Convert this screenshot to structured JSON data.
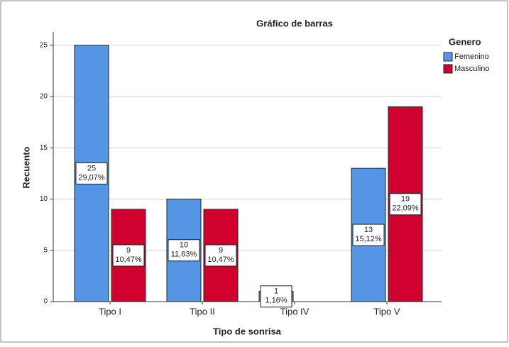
{
  "chart_data": {
    "type": "bar",
    "title": "Gráfico de barras",
    "x_label": "Tipo de sonrisa",
    "y_label": "Recuento",
    "legend_title": "Genero",
    "categories": [
      "Tipo I",
      "Tipo II",
      "Tipo IV",
      "Tipo V"
    ],
    "series": [
      {
        "name": "Femenino",
        "color": "#5595e6",
        "values": [
          25,
          10,
          1,
          13
        ],
        "percent_labels": [
          "29,07%",
          "11,63%",
          "1,16%",
          "15,12%"
        ]
      },
      {
        "name": "Masculino",
        "color": "#d0002f",
        "values": [
          9,
          9,
          null,
          19
        ],
        "percent_labels": [
          "10,47%",
          "10,47%",
          null,
          "22,09%"
        ]
      }
    ],
    "ylim": [
      0,
      26.3
    ],
    "yticks": [
      0,
      5,
      10,
      15,
      20,
      25
    ],
    "grid": true,
    "legend": "right"
  }
}
